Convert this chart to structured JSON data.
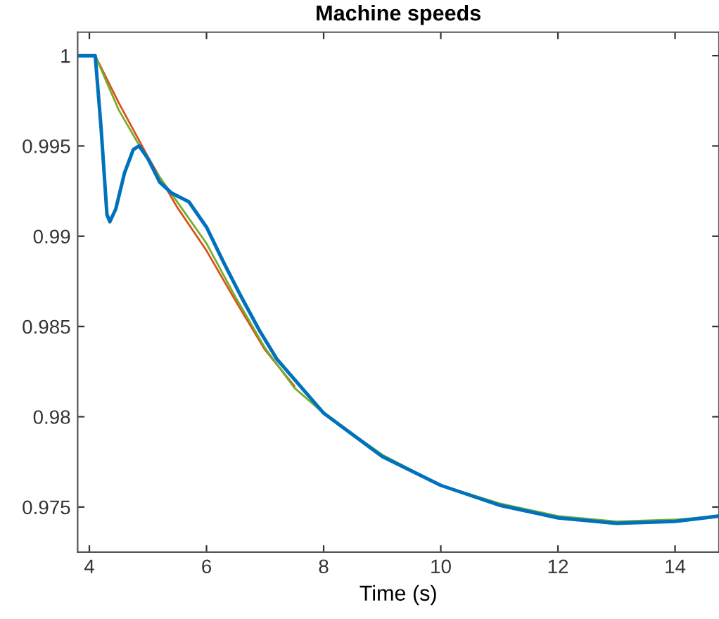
{
  "chart_data": {
    "type": "line",
    "title": "Machine speeds",
    "xlabel": "Time (s)",
    "xlim": [
      3.8,
      14.75
    ],
    "ylim": [
      0.9725,
      1.0013
    ],
    "xticks": [
      4,
      6,
      8,
      10,
      12,
      14
    ],
    "yticks": [
      0.975,
      0.98,
      0.985,
      0.99,
      0.995,
      1
    ],
    "grid": false,
    "legend": false,
    "marker": "none",
    "line_style": "solid",
    "series": [
      {
        "color": "#d95319",
        "x": [
          4.1,
          4.5,
          5.0,
          5.5,
          6.0,
          6.5,
          7.0,
          7.5
        ],
        "values": [
          1.0,
          0.9974,
          0.9944,
          0.9916,
          0.9892,
          0.9864,
          0.9837,
          0.9817
        ]
      },
      {
        "color": "#77ac30",
        "x": [
          3.8,
          4.1,
          4.5,
          5.0,
          5.5,
          6.0,
          6.5,
          7.0,
          7.5,
          8.0,
          9.0,
          10.0,
          11.0,
          12.0,
          13.0,
          14.0,
          14.75
        ],
        "values": [
          1.0,
          1.0,
          0.997,
          0.9942,
          0.9919,
          0.9896,
          0.9866,
          0.9838,
          0.9816,
          0.9802,
          0.9779,
          0.9762,
          0.9752,
          0.9745,
          0.9742,
          0.9743,
          0.9745
        ]
      },
      {
        "color": "#0072bd",
        "x": [
          3.8,
          4.1,
          4.2,
          4.3,
          4.35,
          4.45,
          4.6,
          4.75,
          4.85,
          5.0,
          5.2,
          5.4,
          5.7,
          6.0,
          6.3,
          6.6,
          6.9,
          7.2,
          7.6,
          8.0,
          9.0,
          10.0,
          11.0,
          12.0,
          13.0,
          14.0,
          14.75
        ],
        "values": [
          1.0,
          1.0,
          0.996,
          0.9912,
          0.9908,
          0.9915,
          0.9935,
          0.9948,
          0.995,
          0.9943,
          0.993,
          0.9924,
          0.9919,
          0.9905,
          0.9885,
          0.9866,
          0.9848,
          0.9832,
          0.9817,
          0.9802,
          0.9778,
          0.9762,
          0.9751,
          0.9744,
          0.9741,
          0.9742,
          0.9745
        ]
      }
    ]
  }
}
